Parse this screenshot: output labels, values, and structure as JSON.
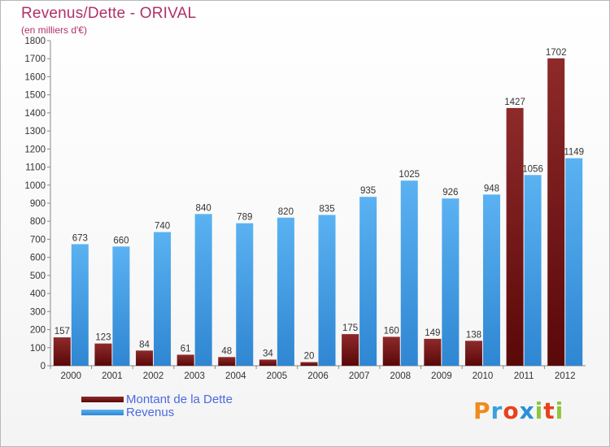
{
  "chart_data": {
    "type": "bar",
    "title": "Revenus/Dette - ORIVAL",
    "subtitle": "(en milliers d'€)",
    "categories": [
      "2000",
      "2001",
      "2002",
      "2003",
      "2004",
      "2005",
      "2006",
      "2007",
      "2008",
      "2009",
      "2010",
      "2011",
      "2012"
    ],
    "series": [
      {
        "name": "Montant de la Dette",
        "color": "#7a1a1a",
        "values": [
          157,
          123,
          84,
          61,
          48,
          34,
          20,
          175,
          160,
          149,
          138,
          1427,
          1702
        ]
      },
      {
        "name": "Revenus",
        "color": "#3d9be6",
        "values": [
          673,
          660,
          740,
          840,
          789,
          820,
          835,
          935,
          1025,
          926,
          948,
          1056,
          1149
        ]
      }
    ],
    "ylim": [
      0,
      1800
    ],
    "yticks": [
      0,
      100,
      200,
      300,
      400,
      500,
      600,
      700,
      800,
      900,
      1000,
      1100,
      1200,
      1300,
      1400,
      1500,
      1600,
      1700,
      1800
    ],
    "grid": false,
    "legend_position": "bottom-left"
  },
  "logo": {
    "letters": [
      "P",
      "r",
      "o",
      "x",
      "i",
      "t",
      "i"
    ],
    "colors": [
      "#f08a1c",
      "#3aa0dc",
      "#e8401c",
      "#2a8fd8",
      "#8cc63f",
      "#e8401c",
      "#8cc63f"
    ]
  }
}
